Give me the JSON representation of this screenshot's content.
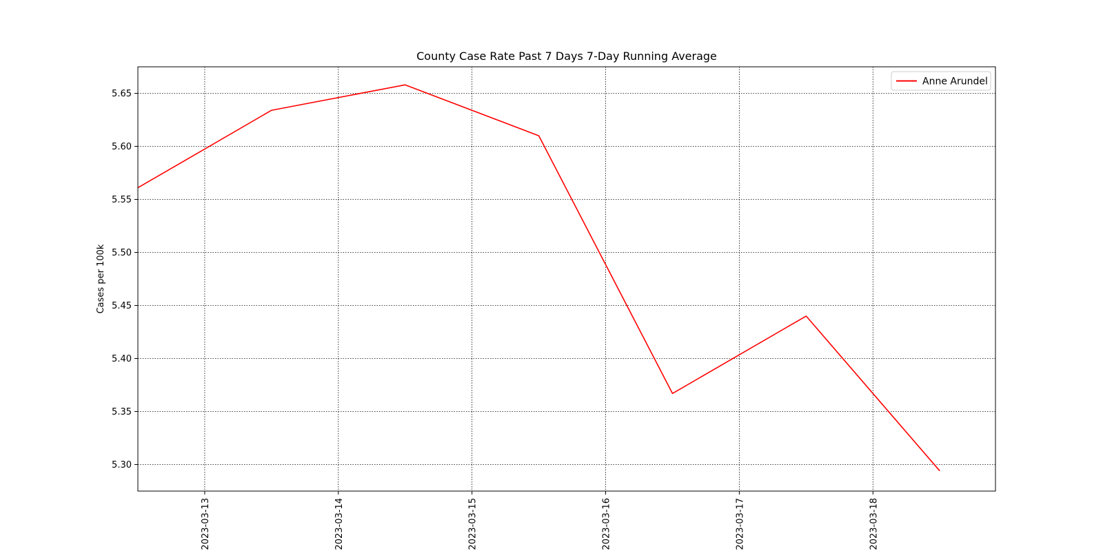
{
  "chart_data": {
    "type": "line",
    "title": "County Case Rate  Past 7 Days 7-Day Running Average",
    "xlabel": "",
    "ylabel": "Cases per 100k",
    "xlim": [
      "2023-03-12T12:00",
      "2023-03-18T22:00"
    ],
    "ylim": [
      5.275,
      5.675
    ],
    "x_ticks": [
      "2023-03-13",
      "2023-03-14",
      "2023-03-15",
      "2023-03-16",
      "2023-03-17",
      "2023-03-18"
    ],
    "y_ticks": [
      "5.30",
      "5.35",
      "5.40",
      "5.45",
      "5.50",
      "5.55",
      "5.60",
      "5.65"
    ],
    "grid": true,
    "legend_position": "top-right",
    "series": [
      {
        "name": "Anne Arundel",
        "color": "#ff0000",
        "x": [
          "2023-03-12T12:00",
          "2023-03-13T12:00",
          "2023-03-14T12:00",
          "2023-03-15T12:00",
          "2023-03-16T12:00",
          "2023-03-17T12:00",
          "2023-03-18T12:00"
        ],
        "y": [
          5.561,
          5.634,
          5.658,
          5.61,
          5.367,
          5.44,
          5.294
        ]
      }
    ]
  }
}
